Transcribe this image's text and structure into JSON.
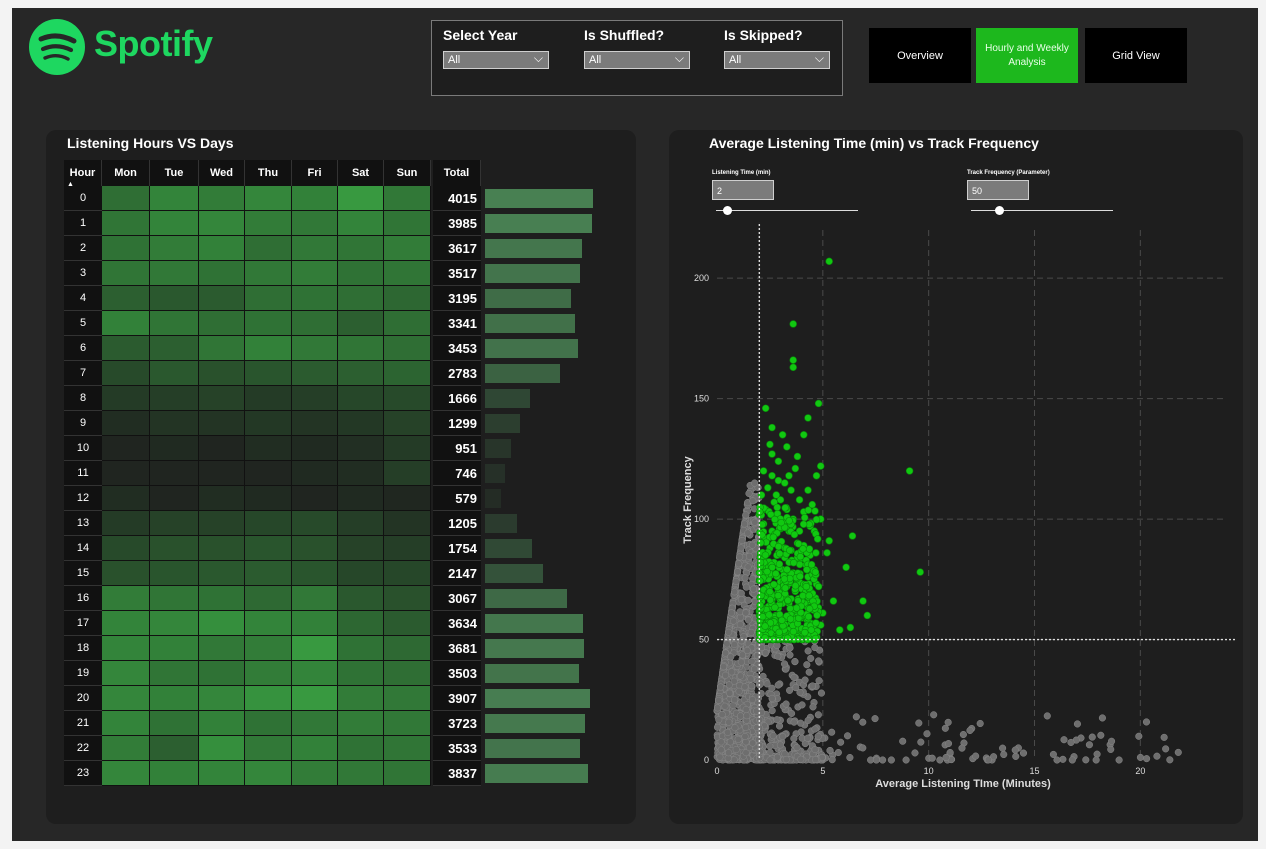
{
  "app": {
    "brand": "Spotify"
  },
  "filters": [
    {
      "label": "Select Year",
      "value": "All"
    },
    {
      "label": "Is Shuffled?",
      "value": "All"
    },
    {
      "label": "Is Skipped?",
      "value": "All"
    }
  ],
  "nav": [
    {
      "label": "Overview",
      "active": false
    },
    {
      "label": "Hourly and Weekly Analysis",
      "active": true
    },
    {
      "label": "Grid View",
      "active": false
    }
  ],
  "heatmap": {
    "title": "Listening Hours VS Days",
    "hour_header": "Hour",
    "total_header": "Total",
    "days": [
      "Mon",
      "Tue",
      "Wed",
      "Thu",
      "Fri",
      "Sat",
      "Sun"
    ],
    "hours": [
      "0",
      "1",
      "2",
      "3",
      "4",
      "5",
      "6",
      "7",
      "8",
      "9",
      "10",
      "11",
      "12",
      "13",
      "14",
      "15",
      "16",
      "17",
      "18",
      "19",
      "20",
      "21",
      "22",
      "23"
    ],
    "totals": [
      "4015",
      "3985",
      "3617",
      "3517",
      "3195",
      "3341",
      "3453",
      "2783",
      "1666",
      "1299",
      "951",
      "746",
      "579",
      "1205",
      "1754",
      "2147",
      "3067",
      "3634",
      "3681",
      "3503",
      "3907",
      "3723",
      "3533",
      "3837"
    ],
    "total_values": [
      4015,
      3985,
      3617,
      3517,
      3195,
      3341,
      3453,
      2783,
      1666,
      1299,
      951,
      746,
      579,
      1205,
      1754,
      2147,
      3067,
      3634,
      3681,
      3503,
      3907,
      3723,
      3533,
      3837
    ],
    "cells": [
      [
        0.55,
        0.7,
        0.65,
        0.72,
        0.68,
        0.85,
        0.62
      ],
      [
        0.6,
        0.7,
        0.72,
        0.65,
        0.62,
        0.7,
        0.6
      ],
      [
        0.58,
        0.65,
        0.68,
        0.55,
        0.62,
        0.6,
        0.65
      ],
      [
        0.6,
        0.62,
        0.58,
        0.62,
        0.65,
        0.58,
        0.6
      ],
      [
        0.45,
        0.4,
        0.42,
        0.55,
        0.58,
        0.55,
        0.5
      ],
      [
        0.68,
        0.6,
        0.55,
        0.58,
        0.55,
        0.45,
        0.55
      ],
      [
        0.42,
        0.45,
        0.6,
        0.68,
        0.62,
        0.6,
        0.55
      ],
      [
        0.3,
        0.4,
        0.35,
        0.38,
        0.42,
        0.45,
        0.48
      ],
      [
        0.2,
        0.22,
        0.25,
        0.2,
        0.22,
        0.28,
        0.3
      ],
      [
        0.1,
        0.15,
        0.15,
        0.18,
        0.15,
        0.18,
        0.25
      ],
      [
        0.05,
        0.08,
        0.05,
        0.1,
        0.08,
        0.12,
        0.2
      ],
      [
        0.05,
        0.05,
        0.05,
        0.05,
        0.08,
        0.1,
        0.22
      ],
      [
        0.1,
        0.05,
        0.1,
        0.08,
        0.05,
        0.08,
        0.06
      ],
      [
        0.2,
        0.25,
        0.25,
        0.28,
        0.3,
        0.22,
        0.15
      ],
      [
        0.3,
        0.35,
        0.35,
        0.38,
        0.35,
        0.25,
        0.22
      ],
      [
        0.35,
        0.38,
        0.4,
        0.42,
        0.38,
        0.28,
        0.28
      ],
      [
        0.65,
        0.6,
        0.58,
        0.52,
        0.62,
        0.4,
        0.35
      ],
      [
        0.7,
        0.72,
        0.78,
        0.7,
        0.68,
        0.5,
        0.42
      ],
      [
        0.7,
        0.68,
        0.62,
        0.65,
        0.85,
        0.58,
        0.52
      ],
      [
        0.72,
        0.6,
        0.58,
        0.65,
        0.7,
        0.58,
        0.55
      ],
      [
        0.72,
        0.68,
        0.72,
        0.8,
        0.85,
        0.65,
        0.62
      ],
      [
        0.7,
        0.58,
        0.68,
        0.58,
        0.62,
        0.65,
        0.62
      ],
      [
        0.65,
        0.45,
        0.78,
        0.62,
        0.68,
        0.58,
        0.6
      ],
      [
        0.72,
        0.68,
        0.7,
        0.72,
        0.65,
        0.62,
        0.6
      ]
    ]
  },
  "scatter": {
    "title": "Average Listening Time (min) vs Track Frequency",
    "params": [
      {
        "label": "Listening Time (min)",
        "value": "2",
        "fraction": 0.08
      },
      {
        "label": "Track Frequency (Parameter)",
        "value": "50",
        "fraction": 0.2
      }
    ]
  },
  "chart_data": {
    "type": "scatter",
    "title": "Average Listening Time (min) vs Track Frequency",
    "xlabel": "Average Listening TIme (Minutes)",
    "ylabel": "Track Frequency",
    "xlim": [
      0,
      24
    ],
    "ylim": [
      0,
      220
    ],
    "xticks": [
      0,
      5,
      10,
      15,
      20
    ],
    "yticks": [
      0,
      50,
      100,
      150,
      200
    ],
    "reference_lines": {
      "x": 2,
      "y": 50
    },
    "highlight_color": "#11c811",
    "base_color": "#6e6e6e",
    "grid": true,
    "highlighted_points": [
      [
        5.3,
        207
      ],
      [
        3.6,
        181
      ],
      [
        3.6,
        166
      ],
      [
        3.6,
        163
      ],
      [
        4.8,
        148
      ],
      [
        2.3,
        146
      ],
      [
        4.3,
        142
      ],
      [
        2.6,
        138
      ],
      [
        3.1,
        135
      ],
      [
        4.1,
        135
      ],
      [
        2.5,
        131
      ],
      [
        3.3,
        130
      ],
      [
        2.6,
        127
      ],
      [
        3.8,
        126
      ],
      [
        2.9,
        124
      ],
      [
        3.7,
        121
      ],
      [
        4.9,
        122
      ],
      [
        2.2,
        120
      ],
      [
        9.1,
        120
      ],
      [
        3.4,
        118
      ],
      [
        4.7,
        118
      ],
      [
        2.9,
        116
      ],
      [
        3.2,
        115
      ],
      [
        2.4,
        113
      ],
      [
        4.3,
        112
      ],
      [
        2.1,
        110
      ],
      [
        3.0,
        108
      ],
      [
        3.9,
        108
      ],
      [
        2.7,
        107
      ],
      [
        4.5,
        106
      ],
      [
        2.3,
        104
      ],
      [
        3.3,
        104
      ],
      [
        4.1,
        103
      ],
      [
        2.8,
        101
      ],
      [
        3.6,
        100
      ],
      [
        4.9,
        100
      ],
      [
        2.2,
        98
      ],
      [
        3.1,
        98
      ],
      [
        4.4,
        97
      ],
      [
        2.6,
        95
      ],
      [
        3.4,
        95
      ],
      [
        4.6,
        95
      ],
      [
        6.4,
        93
      ],
      [
        5.3,
        91
      ],
      [
        2.3,
        91
      ],
      [
        3.0,
        90
      ],
      [
        3.8,
        90
      ],
      [
        4.1,
        89
      ],
      [
        2.5,
        88
      ],
      [
        3.5,
        87
      ],
      [
        2.9,
        86
      ],
      [
        4.4,
        85
      ],
      [
        2.2,
        84
      ],
      [
        3.2,
        84
      ],
      [
        3.9,
        83
      ],
      [
        2.7,
        82
      ],
      [
        3.6,
        82
      ],
      [
        4.2,
        81
      ],
      [
        6.1,
        80
      ],
      [
        2.4,
        80
      ],
      [
        3.1,
        79
      ],
      [
        4.6,
        79
      ],
      [
        9.6,
        78
      ],
      [
        2.8,
        77
      ],
      [
        3.5,
        76
      ],
      [
        4.3,
        76
      ],
      [
        2.2,
        75
      ],
      [
        3.0,
        74
      ],
      [
        3.8,
        74
      ],
      [
        4.7,
        73
      ],
      [
        2.5,
        72
      ],
      [
        3.3,
        72
      ],
      [
        4.0,
        71
      ],
      [
        2.9,
        70
      ],
      [
        3.7,
        70
      ],
      [
        4.5,
        69
      ],
      [
        2.3,
        68
      ],
      [
        3.1,
        67
      ],
      [
        3.9,
        67
      ],
      [
        5.5,
        66
      ],
      [
        2.6,
        65
      ],
      [
        3.4,
        65
      ],
      [
        4.2,
        64
      ],
      [
        2.1,
        63
      ],
      [
        2.9,
        63
      ],
      [
        3.7,
        62
      ],
      [
        4.6,
        62
      ],
      [
        5.0,
        61
      ],
      [
        6.9,
        66
      ],
      [
        7.1,
        60
      ],
      [
        2.4,
        60
      ],
      [
        3.2,
        59
      ],
      [
        4.0,
        59
      ],
      [
        2.7,
        58
      ],
      [
        3.5,
        57
      ],
      [
        4.3,
        57
      ],
      [
        2.2,
        56
      ],
      [
        3.0,
        55
      ],
      [
        3.8,
        55
      ],
      [
        6.3,
        55
      ],
      [
        5.8,
        54
      ],
      [
        2.6,
        54
      ],
      [
        3.4,
        53
      ],
      [
        4.1,
        53
      ],
      [
        2.3,
        52
      ],
      [
        3.1,
        52
      ],
      [
        3.9,
        51
      ],
      [
        4.5,
        51
      ],
      [
        2.8,
        51
      ],
      [
        2.5,
        57
      ],
      [
        3.6,
        60
      ],
      [
        2.2,
        70
      ],
      [
        3.2,
        88
      ],
      [
        2.4,
        92
      ],
      [
        3.9,
        95
      ],
      [
        2.8,
        110
      ],
      [
        3.5,
        112
      ],
      [
        2.6,
        118
      ],
      [
        3.0,
        96
      ],
      [
        4.8,
        72
      ],
      [
        5.2,
        86
      ],
      [
        2.0,
        102
      ],
      [
        4.4,
        66
      ],
      [
        3.3,
        78
      ],
      [
        2.7,
        68
      ],
      [
        3.8,
        84
      ],
      [
        4.9,
        56
      ],
      [
        2.1,
        77
      ]
    ]
  }
}
